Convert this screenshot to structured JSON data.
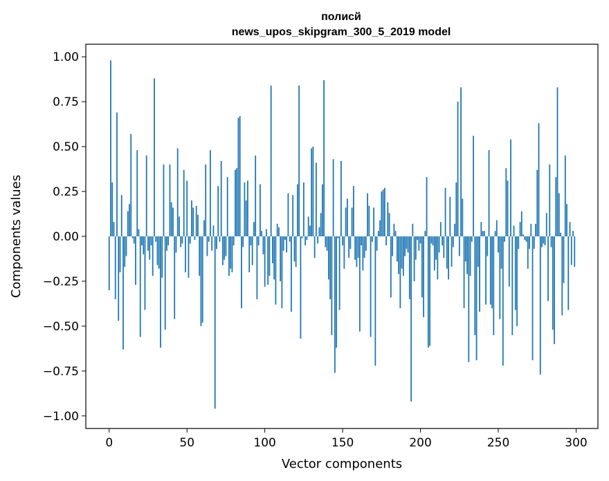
{
  "chart_data": {
    "type": "bar",
    "title": "полисй",
    "subtitle": "news_upos_skipgram_300_5_2019 model",
    "xlabel": "Vector components",
    "ylabel": "Components values",
    "xlim": [
      -15,
      314
    ],
    "ylim": [
      -1.07,
      1.07
    ],
    "xticks": [
      0,
      50,
      100,
      150,
      200,
      250,
      300
    ],
    "yticks": [
      -1.0,
      -0.75,
      -0.5,
      -0.25,
      0.0,
      0.25,
      0.5,
      0.75,
      1.0
    ],
    "ytick_labels": [
      "−1.00",
      "−0.75",
      "−0.50",
      "−0.25",
      "0.00",
      "0.25",
      "0.50",
      "0.75",
      "1.00"
    ],
    "color": "#1f77b4",
    "values": [
      -0.3,
      0.98,
      0.3,
      0.08,
      -0.35,
      0.69,
      -0.47,
      -0.2,
      0.23,
      -0.63,
      -0.17,
      -0.11,
      0.14,
      0.18,
      0.57,
      -0.01,
      -0.04,
      -0.27,
      0.48,
      0.04,
      -0.56,
      -0.05,
      -0.1,
      -0.41,
      0.45,
      -0.08,
      -0.13,
      -0.05,
      -0.22,
      0.88,
      -0.03,
      -0.16,
      -0.18,
      -0.62,
      -0.23,
      0.4,
      -0.52,
      -0.08,
      -0.05,
      0.4,
      0.19,
      0.16,
      -0.46,
      -0.09,
      0.49,
      0.11,
      -0.06,
      -0.04,
      0.37,
      -0.2,
      0.31,
      -0.23,
      -0.04,
      0.2,
      0.16,
      -0.02,
      0.17,
      0.12,
      -0.22,
      -0.5,
      -0.48,
      0.09,
      0.4,
      -0.11,
      -0.03,
      0.48,
      -0.08,
      0.06,
      -0.96,
      -0.07,
      0.28,
      -0.03,
      0.42,
      -0.16,
      -0.13,
      -0.11,
      0.33,
      -0.22,
      -0.18,
      -0.2,
      -0.05,
      0.37,
      0.38,
      0.66,
      0.67,
      -0.4,
      -0.06,
      0.3,
      0.2,
      0.31,
      -0.2,
      -0.05,
      -0.16,
      0.08,
      0.45,
      -0.35,
      -0.05,
      0.29,
      0.03,
      -0.1,
      -0.28,
      0.04,
      -0.27,
      -0.22,
      0.84,
      -0.15,
      -0.24,
      -0.38,
      0.07,
      0.05,
      -0.25,
      -0.4,
      -0.08,
      -0.02,
      -0.09,
      0.24,
      -0.03,
      -0.42,
      0.23,
      -0.14,
      -0.17,
      0.29,
      0.84,
      -0.57,
      -0.01,
      0.3,
      -0.05,
      -0.02,
      0.11,
      0.06,
      0.49,
      0.5,
      -0.12,
      0.41,
      -0.04,
      0.05,
      0.13,
      0.29,
      0.87,
      -0.06,
      -0.08,
      -0.24,
      -0.35,
      -0.55,
      0.43,
      -0.76,
      -0.62,
      -0.01,
      -0.41,
      0.42,
      -0.05,
      -0.18,
      0.16,
      0.21,
      -0.12,
      -0.07,
      0.16,
      0.28,
      -0.13,
      -0.17,
      -0.12,
      -0.53,
      -0.05,
      -0.19,
      -0.12,
      -0.08,
      0.24,
      0.17,
      -0.56,
      -0.03,
      0.16,
      -0.72,
      -0.08,
      0.03,
      0.09,
      0.25,
      0.26,
      0.27,
      -0.05,
      0.19,
      0.13,
      -0.34,
      -0.11,
      0.07,
      0.03,
      -0.14,
      -0.21,
      -0.4,
      -0.18,
      -0.22,
      -0.11,
      -0.07,
      -0.09,
      -0.35,
      -0.92,
      0.07,
      -0.25,
      -0.13,
      -0.02,
      -0.08,
      -0.04,
      -0.34,
      -0.45,
      0.03,
      0.33,
      -0.62,
      -0.61,
      -0.04,
      -0.05,
      -0.19,
      -0.13,
      -0.24,
      -0.09,
      0.08,
      -0.05,
      -0.12,
      0.27,
      -0.18,
      -0.24,
      0.22,
      -0.17,
      -0.06,
      0.07,
      0.3,
      0.75,
      -0.11,
      0.83,
      0.21,
      -0.4,
      -0.14,
      -0.21,
      -0.7,
      -0.22,
      -0.03,
      0.56,
      -0.55,
      -0.69,
      -0.17,
      -0.42,
      0.08,
      0.03,
      0.03,
      -0.38,
      -0.11,
      0.48,
      -0.38,
      -0.4,
      -0.55,
      0.03,
      0.09,
      -0.09,
      -0.46,
      -0.18,
      -0.72,
      -0.03,
      0.38,
      0.31,
      -0.28,
      0.54,
      -0.55,
      0.06,
      -0.41,
      -0.5,
      -0.07,
      0.08,
      0.14,
      0.01,
      -0.02,
      -0.03,
      -0.18,
      -0.07,
      0.07,
      -0.69,
      -0.07,
      0.07,
      0.37,
      0.63,
      -0.77,
      -0.06,
      -0.04,
      -0.05,
      0.13,
      -0.36,
      0.4,
      -0.06,
      -0.52,
      -0.6,
      0.33,
      0.83,
      0.24,
      0.02,
      -0.44,
      -0.26,
      0.45,
      0.18,
      -0.41,
      0.08,
      -0.16,
      0.03,
      -0.17
    ]
  }
}
